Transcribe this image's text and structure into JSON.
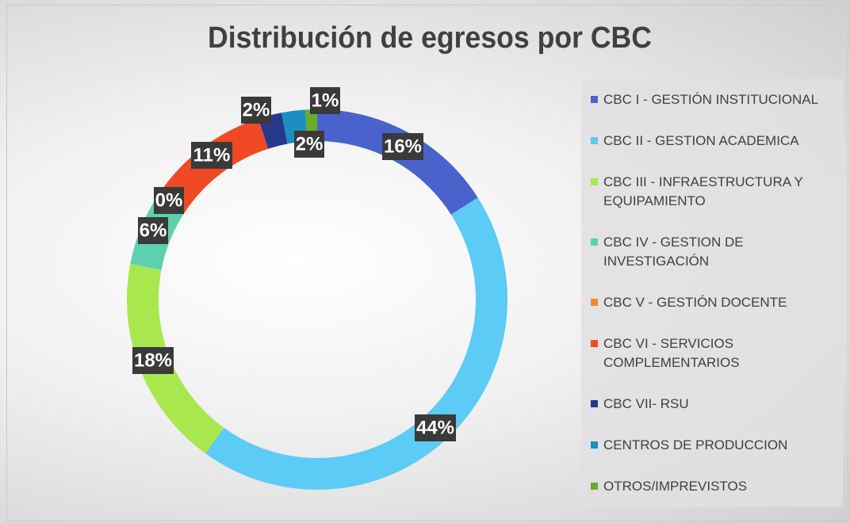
{
  "chart_data": {
    "type": "donut",
    "title": "Distribución de egresos por CBC",
    "categories": [
      "CBC I - GESTIÓN INSTITUCIONAL",
      "CBC II - GESTION ACADEMICA",
      "CBC III - INFRAESTRUCTURA Y EQUIPAMIENTO",
      "CBC IV - GESTION DE INVESTIGACIÓN",
      "CBC V - GESTIÓN DOCENTE",
      "CBC VI - SERVICIOS COMPLEMENTARIOS",
      "CBC VII- RSU",
      "CENTROS DE PRODUCCION",
      "OTROS/IMPREVISTOS"
    ],
    "values": [
      16,
      44,
      18,
      6,
      0,
      11,
      2,
      2,
      1
    ],
    "value_labels": [
      "16%",
      "44%",
      "18%",
      "6%",
      "0%",
      "11%",
      "2%",
      "2%",
      "1%"
    ],
    "colors": [
      "#4a63cc",
      "#5ccbf5",
      "#a8e84e",
      "#5ecfaf",
      "#f5892a",
      "#ef4a25",
      "#27398a",
      "#1b8fc0",
      "#6aab2b"
    ],
    "legend": "right"
  }
}
